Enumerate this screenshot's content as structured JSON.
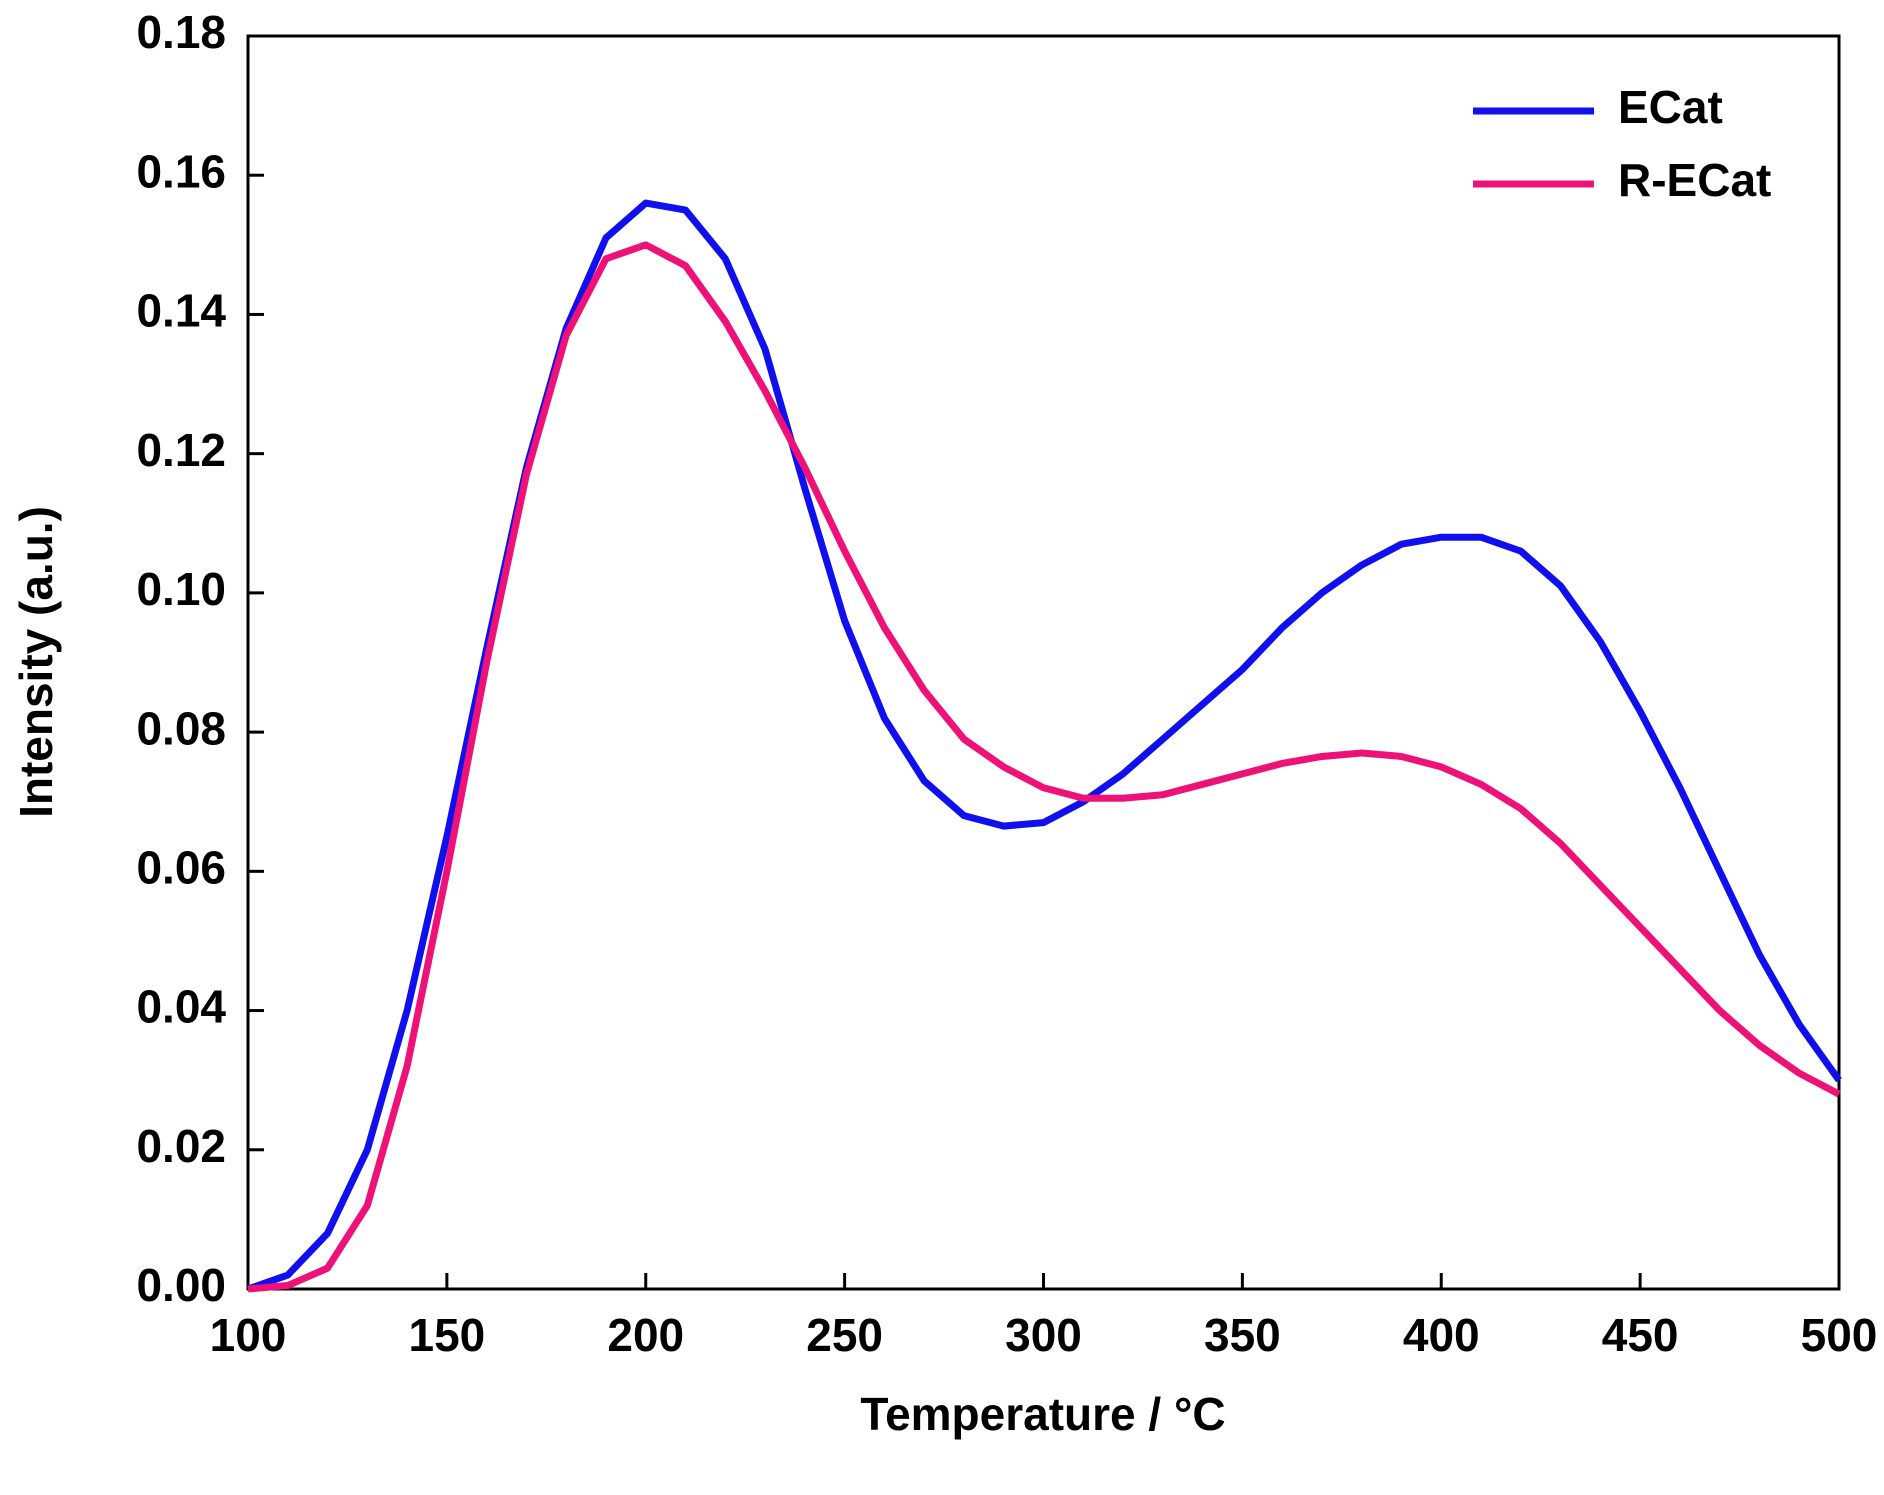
{
  "chart_data": {
    "type": "line",
    "x_label": "Temperature / °C",
    "y_label": "Intensity (a.u.)",
    "x": [
      100,
      110,
      120,
      130,
      140,
      150,
      160,
      170,
      180,
      190,
      200,
      210,
      220,
      230,
      240,
      250,
      260,
      270,
      280,
      290,
      300,
      310,
      320,
      330,
      340,
      350,
      360,
      370,
      380,
      390,
      400,
      410,
      420,
      430,
      440,
      450,
      460,
      470,
      480,
      490,
      500
    ],
    "series": [
      {
        "name": "ECat",
        "color": "#1010ee",
        "values": [
          0,
          0.002,
          0.008,
          0.02,
          0.04,
          0.065,
          0.092,
          0.118,
          0.138,
          0.151,
          0.156,
          0.155,
          0.148,
          0.135,
          0.115,
          0.096,
          0.082,
          0.073,
          0.068,
          0.0665,
          0.067,
          0.07,
          0.074,
          0.079,
          0.084,
          0.089,
          0.095,
          0.1,
          0.104,
          0.107,
          0.108,
          0.108,
          0.106,
          0.101,
          0.093,
          0.083,
          0.072,
          0.06,
          0.048,
          0.038,
          0.03
        ]
      },
      {
        "name": "R-ECat",
        "color": "#ee1177",
        "values": [
          0,
          0.0005,
          0.003,
          0.012,
          0.032,
          0.06,
          0.09,
          0.117,
          0.137,
          0.148,
          0.15,
          0.147,
          0.139,
          0.129,
          0.118,
          0.106,
          0.095,
          0.086,
          0.079,
          0.075,
          0.072,
          0.0705,
          0.0705,
          0.071,
          0.0725,
          0.074,
          0.0755,
          0.0765,
          0.077,
          0.0765,
          0.075,
          0.0725,
          0.069,
          0.064,
          0.058,
          0.052,
          0.046,
          0.04,
          0.035,
          0.031,
          0.028
        ]
      }
    ],
    "xlim": [
      100,
      500
    ],
    "xticks": [
      100,
      150,
      200,
      250,
      300,
      350,
      400,
      450,
      500
    ],
    "ylim": [
      0,
      0.18
    ],
    "yticks": [
      {
        "value": 0,
        "label": "0.00"
      },
      {
        "value": 0.02,
        "label": "0.02"
      },
      {
        "value": 0.04,
        "label": "0.04"
      },
      {
        "value": 0.06,
        "label": "0.06"
      },
      {
        "value": 0.08,
        "label": "0.08"
      },
      {
        "value": 0.1,
        "label": "0.10"
      },
      {
        "value": 0.12,
        "label": "0.12"
      },
      {
        "value": 0.14,
        "label": "0.14"
      },
      {
        "value": 0.16,
        "label": "0.16"
      },
      {
        "value": 0.18,
        "label": "0.18"
      }
    ],
    "legend": "upper right"
  }
}
